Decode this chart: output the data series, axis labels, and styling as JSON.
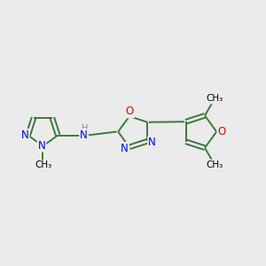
{
  "background_color": "#ebebeb",
  "bond_color": "#3a7a3a",
  "n_color": "#0000ee",
  "o_color": "#dd0000",
  "h_color": "#888888",
  "font_size": 8.5,
  "line_width": 1.4,
  "figsize": [
    3.0,
    3.0
  ],
  "dpi": 100,
  "xlim": [
    0,
    10
  ],
  "ylim": [
    2,
    8
  ]
}
